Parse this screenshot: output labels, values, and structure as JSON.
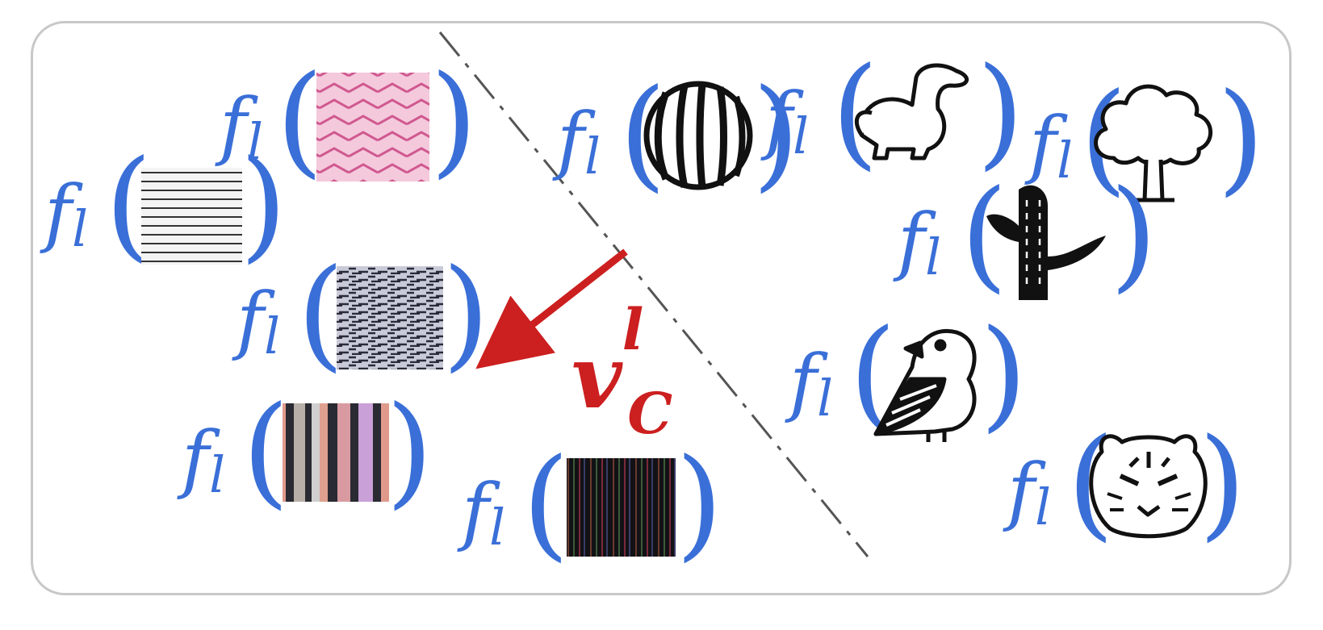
{
  "function_symbol": "f",
  "function_subscript": "l",
  "concept_vector": {
    "symbol": "v",
    "superscript": "l",
    "subscript": "C",
    "color": "#cc1f1f"
  },
  "colors": {
    "function_text": "#3a6fd8",
    "panel_border": "#c8c8c8",
    "divider": "#555555",
    "arrow": "#cc1f1f"
  },
  "concept_examples": [
    {
      "icon": "pink-chevron-texture"
    },
    {
      "icon": "horizontal-line-texture"
    },
    {
      "icon": "gray-noise-texture"
    },
    {
      "icon": "pastel-vertical-stripe-texture"
    },
    {
      "icon": "dark-vertical-stripe-texture"
    }
  ],
  "non_concept_examples": [
    {
      "icon": "watermelon-icon"
    },
    {
      "icon": "dinosaur-icon"
    },
    {
      "icon": "tree-icon"
    },
    {
      "icon": "cactus-icon"
    },
    {
      "icon": "bird-icon"
    },
    {
      "icon": "tiger-icon"
    }
  ]
}
